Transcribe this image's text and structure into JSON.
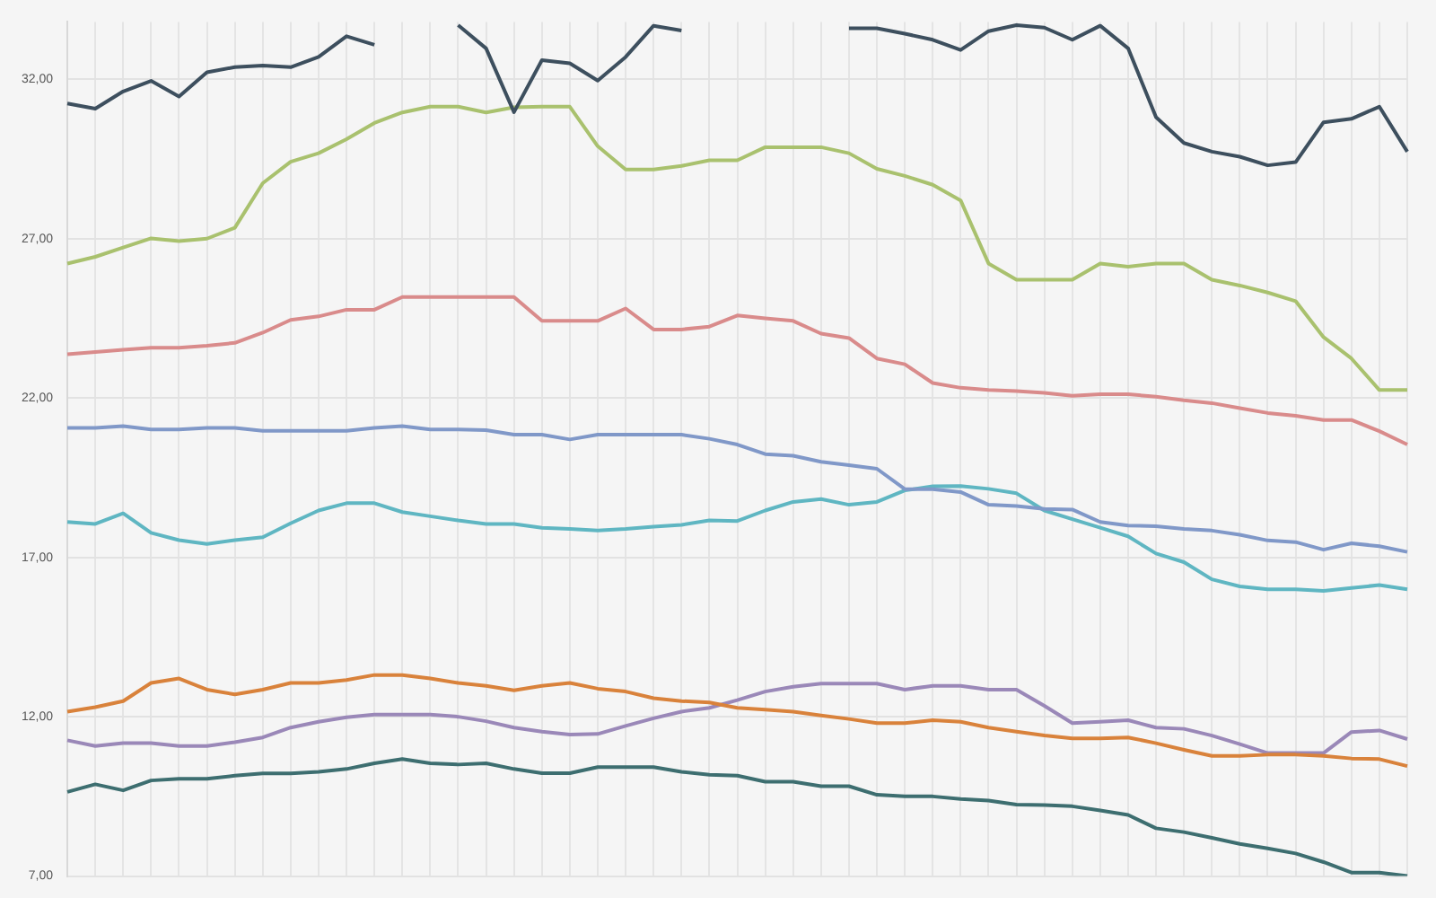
{
  "chart_data": {
    "type": "line",
    "categories": [
      null,
      null,
      null,
      null,
      null,
      null,
      null,
      null,
      null,
      null,
      null,
      null,
      null,
      null,
      null,
      null,
      null,
      null,
      null,
      null,
      null,
      null,
      null,
      null,
      null,
      null,
      null,
      null,
      null,
      null,
      null,
      null,
      null,
      null,
      null,
      null,
      null,
      null,
      null,
      null,
      null,
      null,
      null,
      null,
      null,
      null,
      null,
      null,
      null
    ],
    "series": [
      {
        "color": "#3d4f5e",
        "values": [
          31.24,
          31.08,
          31.62,
          31.95,
          31.46,
          32.22,
          32.38,
          32.43,
          32.38,
          32.7,
          33.35,
          33.08,
          null,
          null,
          33.7,
          32.97,
          30.97,
          32.6,
          32.5,
          31.96,
          32.7,
          33.68,
          33.53,
          null,
          null,
          null,
          null,
          null,
          33.6,
          33.6,
          33.43,
          33.24,
          32.92,
          33.51,
          33.7,
          33.62,
          33.24,
          33.68,
          32.97,
          30.81,
          30.0,
          29.73,
          29.57,
          29.3,
          29.4,
          30.65,
          30.76,
          31.14,
          29.73
        ]
      },
      {
        "color": "#a9c16e",
        "values": [
          26.22,
          26.43,
          26.72,
          27.01,
          26.92,
          27.0,
          27.34,
          28.74,
          29.41,
          29.68,
          30.12,
          30.63,
          30.96,
          31.14,
          31.14,
          30.96,
          31.12,
          31.14,
          31.14,
          29.9,
          29.17,
          29.17,
          29.28,
          29.46,
          29.46,
          29.87,
          29.87,
          29.87,
          29.68,
          29.19,
          28.97,
          28.69,
          28.2,
          26.22,
          25.71,
          25.71,
          25.71,
          26.22,
          26.12,
          26.22,
          26.22,
          25.71,
          25.53,
          25.31,
          25.04,
          23.91,
          23.24,
          22.25,
          22.25
        ]
      },
      {
        "color": "#d98b8b",
        "values": [
          23.37,
          23.44,
          23.51,
          23.58,
          23.58,
          23.64,
          23.73,
          24.05,
          24.45,
          24.56,
          24.77,
          24.77,
          25.17,
          25.17,
          25.17,
          25.17,
          25.17,
          24.42,
          24.42,
          24.42,
          24.81,
          24.15,
          24.15,
          24.24,
          24.59,
          24.5,
          24.42,
          24.02,
          23.88,
          23.24,
          23.06,
          22.47,
          22.32,
          22.25,
          22.22,
          22.16,
          22.07,
          22.12,
          22.12,
          22.04,
          21.93,
          21.84,
          21.68,
          21.53,
          21.44,
          21.31,
          21.31,
          20.96,
          20.54
        ]
      },
      {
        "color": "#8098c8",
        "values": [
          21.06,
          21.06,
          21.12,
          21.01,
          21.01,
          21.06,
          21.06,
          20.97,
          20.97,
          20.97,
          20.97,
          21.06,
          21.12,
          21.01,
          21.01,
          20.99,
          20.85,
          20.85,
          20.7,
          20.85,
          20.85,
          20.85,
          20.85,
          20.72,
          20.54,
          20.24,
          20.19,
          20.0,
          19.89,
          19.78,
          19.14,
          19.14,
          19.05,
          18.65,
          18.61,
          18.52,
          18.5,
          18.11,
          18.0,
          17.98,
          17.89,
          17.84,
          17.71,
          17.53,
          17.48,
          17.24,
          17.44,
          17.35,
          17.17
        ]
      },
      {
        "color": "#5fb6c2",
        "values": [
          18.11,
          18.05,
          18.38,
          17.77,
          17.54,
          17.42,
          17.54,
          17.63,
          18.07,
          18.47,
          18.7,
          18.7,
          18.42,
          18.29,
          18.16,
          18.05,
          18.05,
          17.93,
          17.89,
          17.84,
          17.89,
          17.96,
          18.02,
          18.16,
          18.14,
          18.47,
          18.74,
          18.83,
          18.65,
          18.74,
          19.1,
          19.23,
          19.24,
          19.15,
          19.01,
          18.47,
          18.2,
          17.93,
          17.66,
          17.12,
          16.85,
          16.31,
          16.09,
          16.0,
          16.0,
          15.95,
          16.04,
          16.13,
          16.0
        ]
      },
      {
        "color": "#d9823b",
        "values": [
          12.16,
          12.3,
          12.49,
          13.06,
          13.2,
          12.85,
          12.7,
          12.85,
          13.06,
          13.06,
          13.15,
          13.31,
          13.31,
          13.2,
          13.06,
          12.97,
          12.83,
          12.97,
          13.06,
          12.88,
          12.79,
          12.58,
          12.49,
          12.45,
          12.28,
          12.22,
          12.16,
          12.04,
          11.93,
          11.8,
          11.8,
          11.89,
          11.84,
          11.66,
          11.53,
          11.41,
          11.32,
          11.32,
          11.35,
          11.17,
          10.96,
          10.77,
          10.77,
          10.81,
          10.81,
          10.77,
          10.69,
          10.67,
          10.45
        ]
      },
      {
        "color": "#9a88b8",
        "values": [
          11.26,
          11.08,
          11.17,
          11.17,
          11.08,
          11.08,
          11.2,
          11.35,
          11.66,
          11.84,
          11.98,
          12.07,
          12.07,
          12.07,
          12.0,
          11.86,
          11.66,
          11.53,
          11.44,
          11.46,
          11.71,
          11.95,
          12.16,
          12.28,
          12.52,
          12.79,
          12.94,
          13.04,
          13.04,
          13.04,
          12.85,
          12.97,
          12.97,
          12.85,
          12.85,
          12.34,
          11.8,
          11.84,
          11.89,
          11.66,
          11.62,
          11.41,
          11.14,
          10.86,
          10.86,
          10.86,
          11.52,
          11.57,
          11.3
        ]
      },
      {
        "color": "#3d6e70",
        "values": [
          9.64,
          9.88,
          9.69,
          10.0,
          10.05,
          10.05,
          10.15,
          10.22,
          10.22,
          10.27,
          10.36,
          10.54,
          10.67,
          10.54,
          10.5,
          10.54,
          10.36,
          10.23,
          10.23,
          10.42,
          10.42,
          10.42,
          10.27,
          10.18,
          10.15,
          9.96,
          9.96,
          9.82,
          9.82,
          9.55,
          9.5,
          9.5,
          9.42,
          9.37,
          9.24,
          9.23,
          9.19,
          9.06,
          8.92,
          8.5,
          8.38,
          8.2,
          8.01,
          7.87,
          7.71,
          7.44,
          7.11,
          7.11,
          7.0
        ]
      }
    ],
    "ylim": [
      7,
      33.8
    ],
    "yticks": [
      {
        "value": 7,
        "label": "7,00"
      },
      {
        "value": 12,
        "label": "12,00"
      },
      {
        "value": 17,
        "label": "17,00"
      },
      {
        "value": 22,
        "label": "22,00"
      },
      {
        "value": 27,
        "label": "27,00"
      },
      {
        "value": 32,
        "label": "32,00"
      }
    ],
    "grid": true,
    "tick_labels": "y",
    "legend": false
  }
}
